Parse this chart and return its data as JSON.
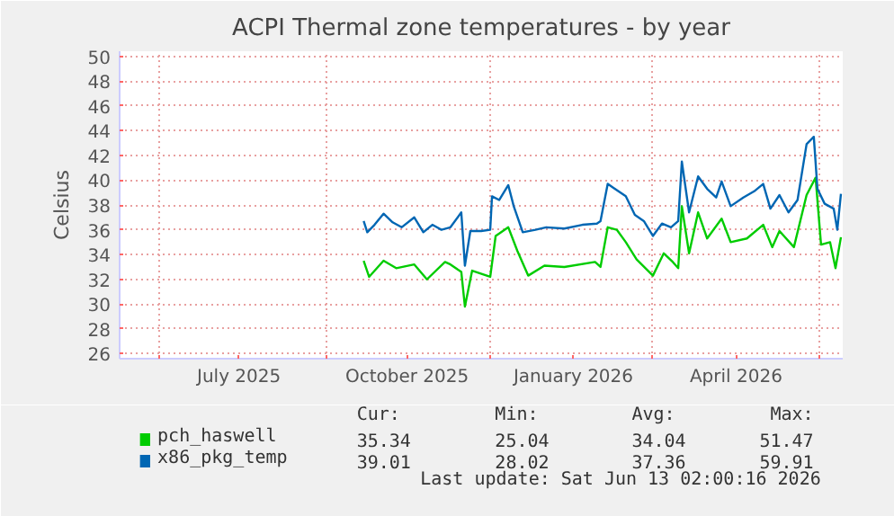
{
  "chart_data": {
    "type": "line",
    "title": "ACPI Thermal zone temperatures - by year",
    "ylabel": "Celsius",
    "xlim": [
      "2025-05-10",
      "2026-06-14"
    ],
    "xticks": [
      {
        "value": "2025-06-01",
        "label": null
      },
      {
        "value": "2025-07-15",
        "label": "July 2025"
      },
      {
        "value": "2025-09-01",
        "label": null
      },
      {
        "value": "2025-10-16",
        "label": "October 2025"
      },
      {
        "value": "2025-12-01",
        "label": null
      },
      {
        "value": "2026-01-16",
        "label": "January 2026"
      },
      {
        "value": "2026-03-01",
        "label": null
      },
      {
        "value": "2026-04-16",
        "label": "April 2026"
      },
      {
        "value": "2026-06-01",
        "label": null
      }
    ],
    "ylim": [
      25.6,
      50.4
    ],
    "yticks": [
      26,
      28,
      30,
      32,
      34,
      36,
      38,
      40,
      42,
      44,
      46,
      48,
      50
    ],
    "grid": true,
    "legend": "bottom",
    "series": [
      {
        "name": "pch_haswell",
        "color": "#00cc00",
        "x": [
          "2025-09-22",
          "2025-09-25",
          "2025-10-03",
          "2025-10-10",
          "2025-10-20",
          "2025-10-27",
          "2025-11-06",
          "2025-11-09",
          "2025-11-15",
          "2025-11-17",
          "2025-11-21",
          "2025-12-01",
          "2025-12-04",
          "2025-12-11",
          "2025-12-16",
          "2025-12-22",
          "2025-12-31",
          "2026-01-11",
          "2026-01-28",
          "2026-01-31",
          "2026-02-04",
          "2026-02-09",
          "2026-02-14",
          "2026-02-20",
          "2026-03-01",
          "2026-03-07",
          "2026-03-12",
          "2026-03-15",
          "2026-03-17",
          "2026-03-21",
          "2026-03-26",
          "2026-03-31",
          "2026-04-08",
          "2026-04-13",
          "2026-04-22",
          "2026-05-01",
          "2026-05-06",
          "2026-05-10",
          "2026-05-18",
          "2026-05-25",
          "2026-05-30",
          "2026-06-02",
          "2026-06-07",
          "2026-06-10",
          "2026-06-13"
        ],
        "values": [
          33.5,
          32.2,
          33.5,
          32.9,
          33.2,
          32.0,
          33.4,
          33.2,
          32.6,
          29.8,
          32.7,
          32.2,
          35.5,
          36.2,
          34.3,
          32.3,
          33.1,
          33.0,
          33.4,
          33.0,
          36.2,
          36.0,
          35.0,
          33.6,
          32.3,
          34.1,
          33.4,
          32.9,
          37.9,
          34.1,
          37.4,
          35.3,
          36.9,
          35.0,
          35.3,
          36.4,
          34.6,
          35.9,
          34.6,
          38.8,
          40.2,
          34.8,
          35.0,
          32.9,
          35.4
        ]
      },
      {
        "name": "x86_pkg_temp",
        "color": "#0066b3",
        "x": [
          "2025-09-22",
          "2025-09-24",
          "2025-09-28",
          "2025-10-03",
          "2025-10-08",
          "2025-10-13",
          "2025-10-20",
          "2025-10-25",
          "2025-10-30",
          "2025-11-04",
          "2025-11-09",
          "2025-11-15",
          "2025-11-17",
          "2025-11-20",
          "2025-11-26",
          "2025-12-01",
          "2025-12-02",
          "2025-12-06",
          "2025-12-11",
          "2025-12-14",
          "2025-12-19",
          "2025-12-26",
          "2026-01-01",
          "2026-01-11",
          "2026-01-21",
          "2026-01-29",
          "2026-01-31",
          "2026-02-04",
          "2026-02-07",
          "2026-02-14",
          "2026-02-19",
          "2026-02-24",
          "2026-03-01",
          "2026-03-06",
          "2026-03-11",
          "2026-03-15",
          "2026-03-17",
          "2026-03-21",
          "2026-03-26",
          "2026-03-31",
          "2026-04-05",
          "2026-04-08",
          "2026-04-13",
          "2026-04-20",
          "2026-04-26",
          "2026-05-01",
          "2026-05-05",
          "2026-05-10",
          "2026-05-15",
          "2026-05-20",
          "2026-05-25",
          "2026-05-29",
          "2026-05-31",
          "2026-06-04",
          "2026-06-09",
          "2026-06-11",
          "2026-06-13"
        ],
        "values": [
          36.7,
          35.8,
          36.4,
          37.3,
          36.6,
          36.2,
          37.0,
          35.8,
          36.4,
          36.0,
          36.2,
          37.4,
          33.1,
          35.9,
          35.9,
          36.0,
          38.7,
          38.4,
          39.6,
          37.9,
          35.8,
          36.0,
          36.2,
          36.1,
          36.4,
          36.5,
          36.7,
          39.7,
          39.4,
          38.7,
          37.2,
          36.7,
          35.5,
          36.5,
          36.2,
          36.7,
          41.5,
          37.4,
          40.3,
          39.3,
          38.6,
          39.9,
          37.9,
          38.6,
          39.1,
          39.7,
          37.7,
          38.8,
          37.4,
          38.4,
          42.9,
          43.5,
          39.3,
          38.1,
          37.7,
          36.0,
          38.9
        ]
      }
    ],
    "annotations": [
      "Cur:",
      "Min:",
      "Avg:",
      "Max:",
      "35.34",
      "25.04",
      "34.04",
      "51.47",
      "39.01",
      "28.02",
      "37.36",
      "59.91",
      "Last update: Sat Jun 13 02:00:16 2026"
    ]
  }
}
